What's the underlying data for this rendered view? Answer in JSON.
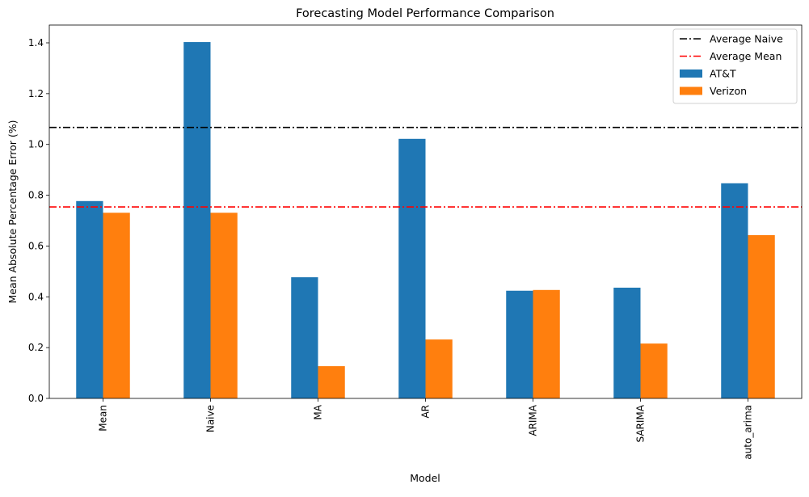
{
  "chart_data": {
    "type": "bar",
    "title": "Forecasting Model Performance Comparison",
    "xlabel": "Model",
    "ylabel": "Mean Absolute Percentage Error (%)",
    "categories": [
      "Mean",
      "Naive",
      "MA",
      "AR",
      "ARIMA",
      "SARIMA",
      "auto_arima"
    ],
    "series": [
      {
        "name": "AT&T",
        "color": "#1f77b4",
        "values": [
          0.777,
          1.403,
          0.477,
          1.022,
          0.424,
          0.436,
          0.847
        ]
      },
      {
        "name": "Verizon",
        "color": "#ff7f0e",
        "values": [
          0.731,
          0.731,
          0.127,
          0.232,
          0.427,
          0.216,
          0.643
        ]
      }
    ],
    "reference_lines": [
      {
        "name": "Average Naive",
        "value": 1.067,
        "color": "#000000",
        "style": "dash-dot"
      },
      {
        "name": "Average Mean",
        "value": 0.754,
        "color": "#ff0000",
        "style": "dash-dot"
      }
    ],
    "ylim": [
      0,
      1.47
    ],
    "yticks": [
      "0.0",
      "0.2",
      "0.4",
      "0.6",
      "0.8",
      "1.0",
      "1.2",
      "1.4"
    ],
    "grid": false,
    "legend": {
      "position": "top-right",
      "entries": [
        "Average Naive",
        "Average Mean",
        "AT&T",
        "Verizon"
      ]
    }
  }
}
